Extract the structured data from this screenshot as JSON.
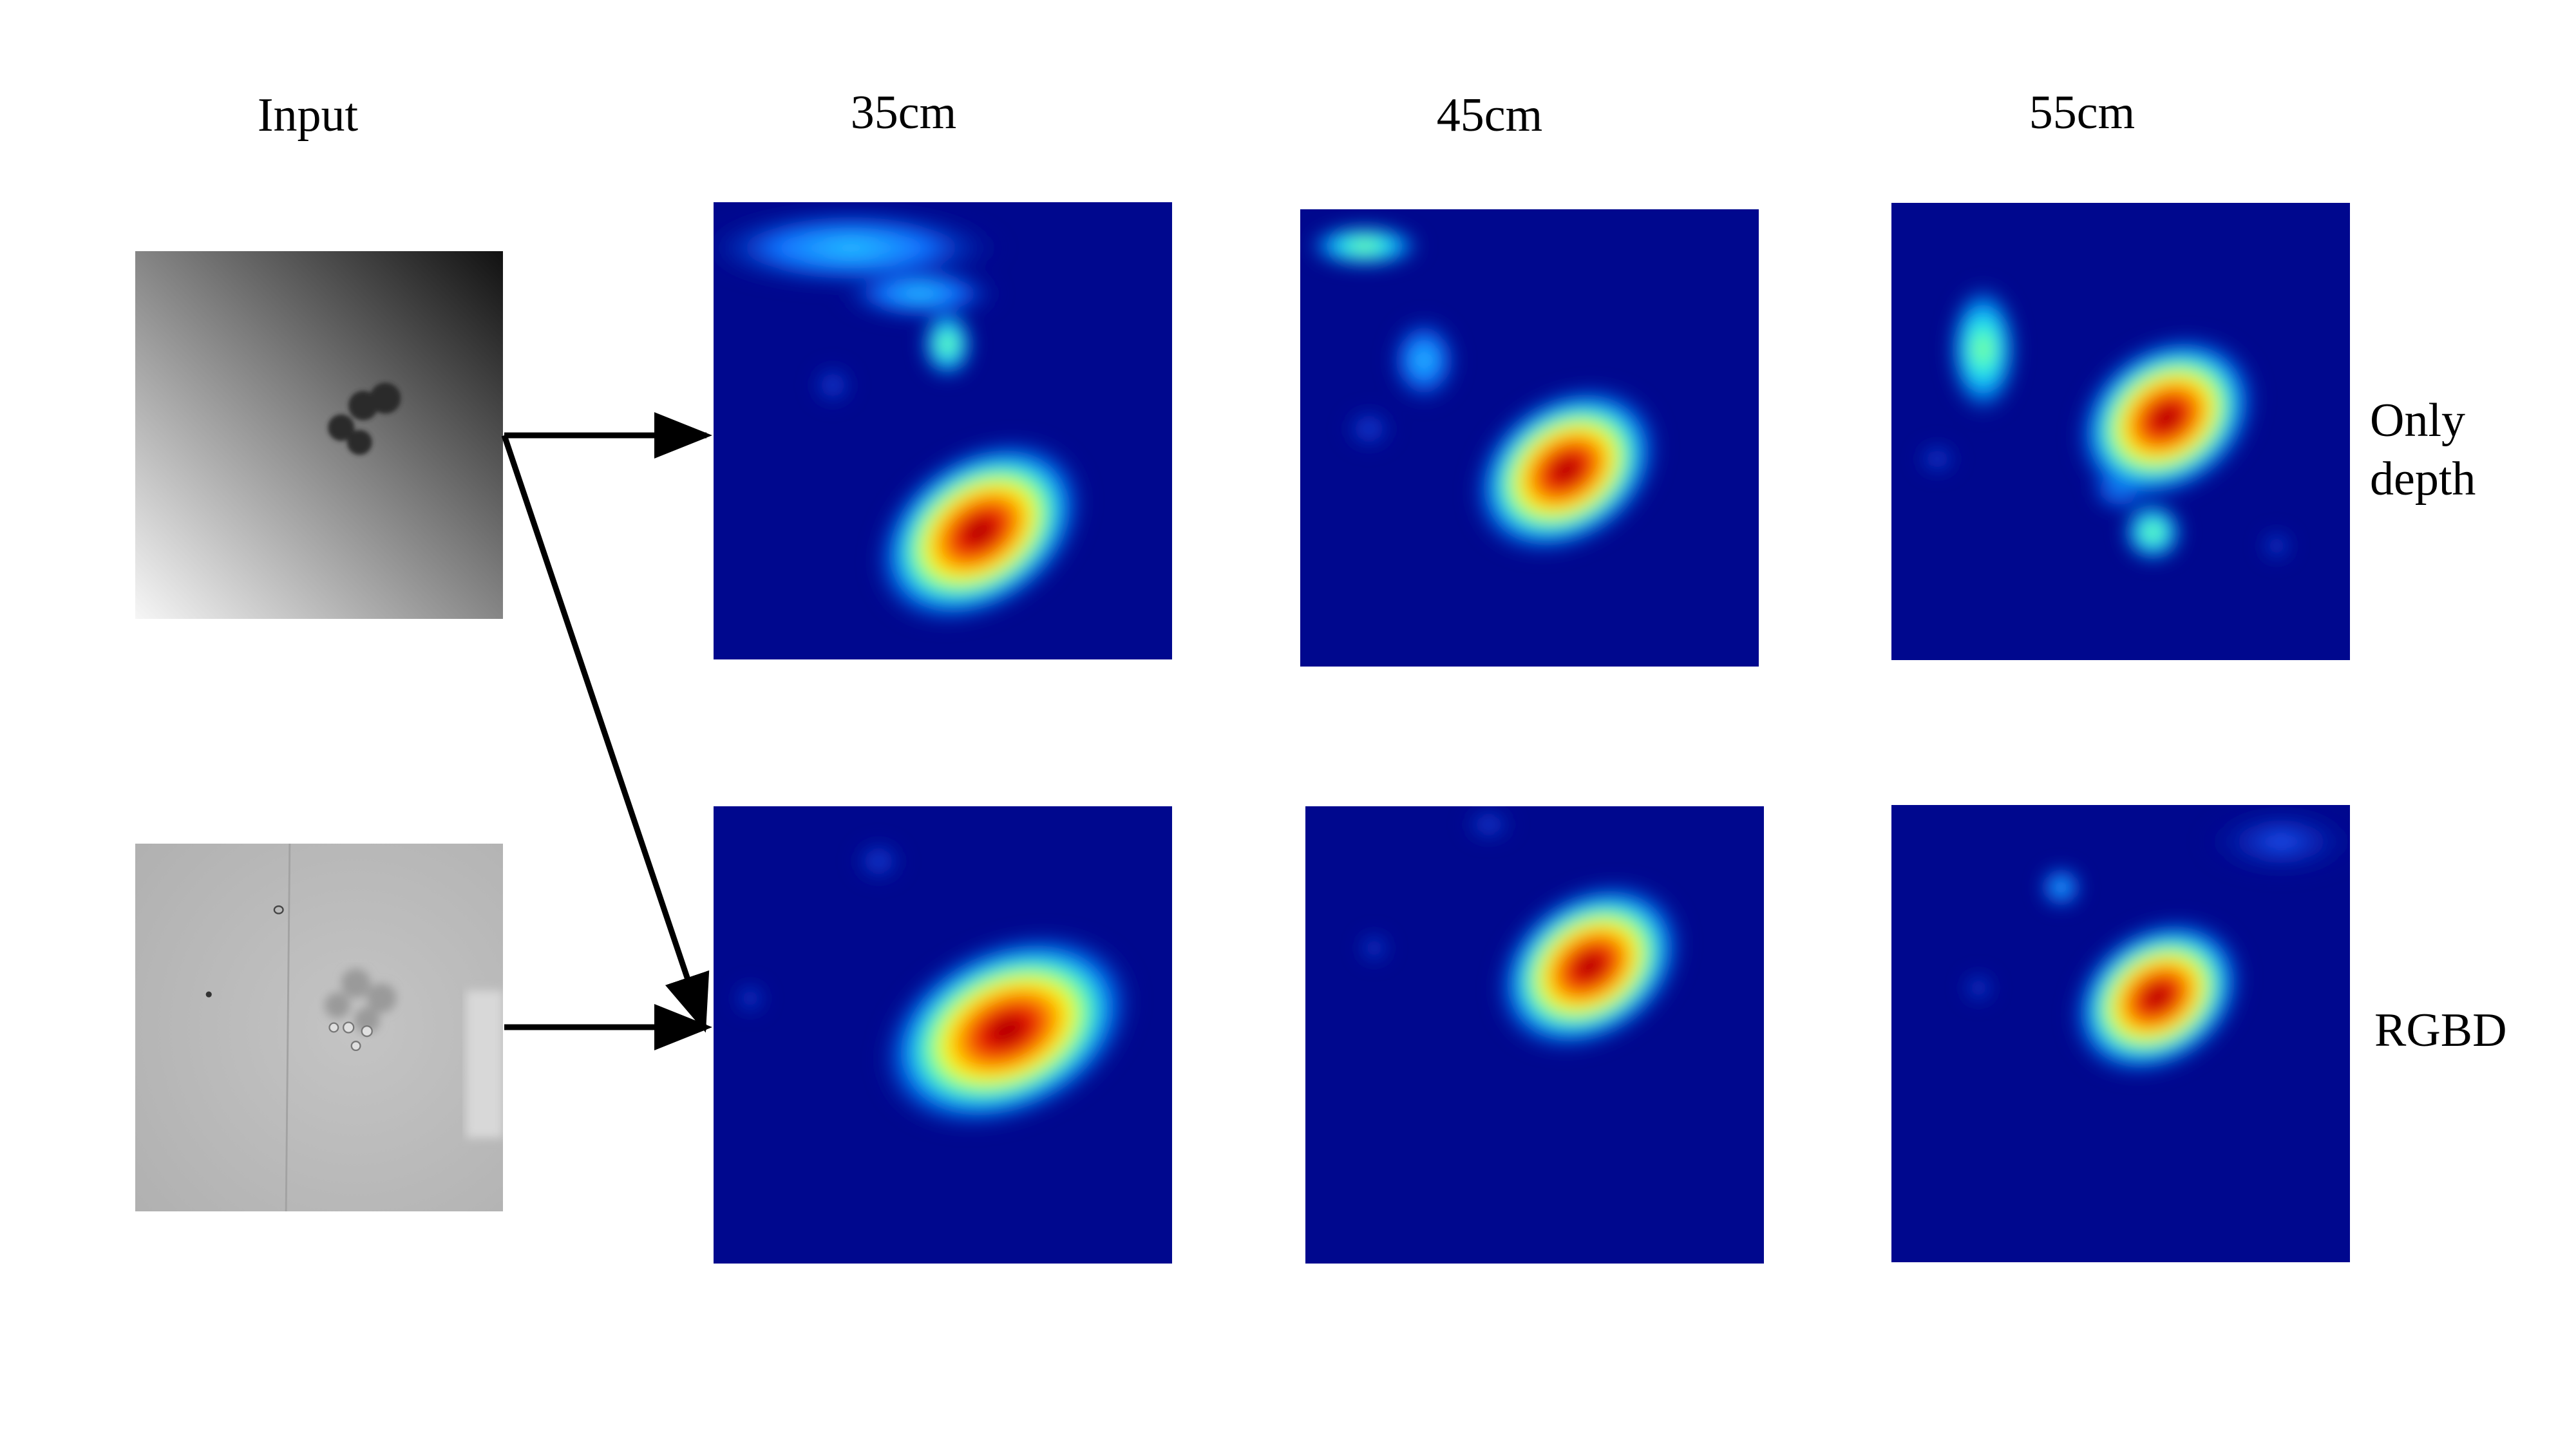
{
  "headers": {
    "input": "Input",
    "col_35": "35cm",
    "col_45": "45cm",
    "col_55": "55cm"
  },
  "row_labels": {
    "depth_line1": "Only",
    "depth_line2": "depth",
    "rgbd": "RGBD"
  },
  "colors": {
    "heatmap_background": "#00088e",
    "heatmap_peak": "#8b0000",
    "arrow": "#000000"
  }
}
